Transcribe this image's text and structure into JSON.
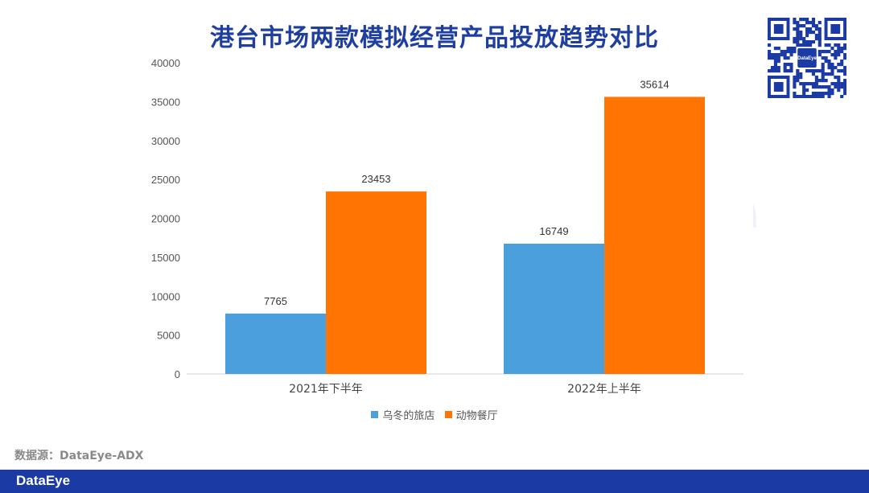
{
  "title": "港台市场两款模拟经营产品投放趋势对比",
  "watermark": "DataEye",
  "source": "数据源：DataEye-ADX",
  "footer_logo": "DataEye",
  "qr_logo": "DataEye",
  "colors": {
    "series1": "#4a9fdc",
    "series2": "#ff7402",
    "title": "#1f3f9e",
    "footer": "#1b3aa3"
  },
  "chart_data": {
    "type": "bar",
    "title": "港台市场两款模拟经营产品投放趋势对比",
    "categories": [
      "2021年下半年",
      "2022年上半年"
    ],
    "series": [
      {
        "name": "乌冬的旅店",
        "values": [
          7765,
          16749
        ]
      },
      {
        "name": "动物餐厅",
        "values": [
          23453,
          35614
        ]
      }
    ],
    "ylim": [
      0,
      40000
    ],
    "yticks": [
      0,
      5000,
      10000,
      15000,
      20000,
      25000,
      30000,
      35000,
      40000
    ],
    "grid": false,
    "legend": "bottom",
    "xlabel": "",
    "ylabel": ""
  }
}
